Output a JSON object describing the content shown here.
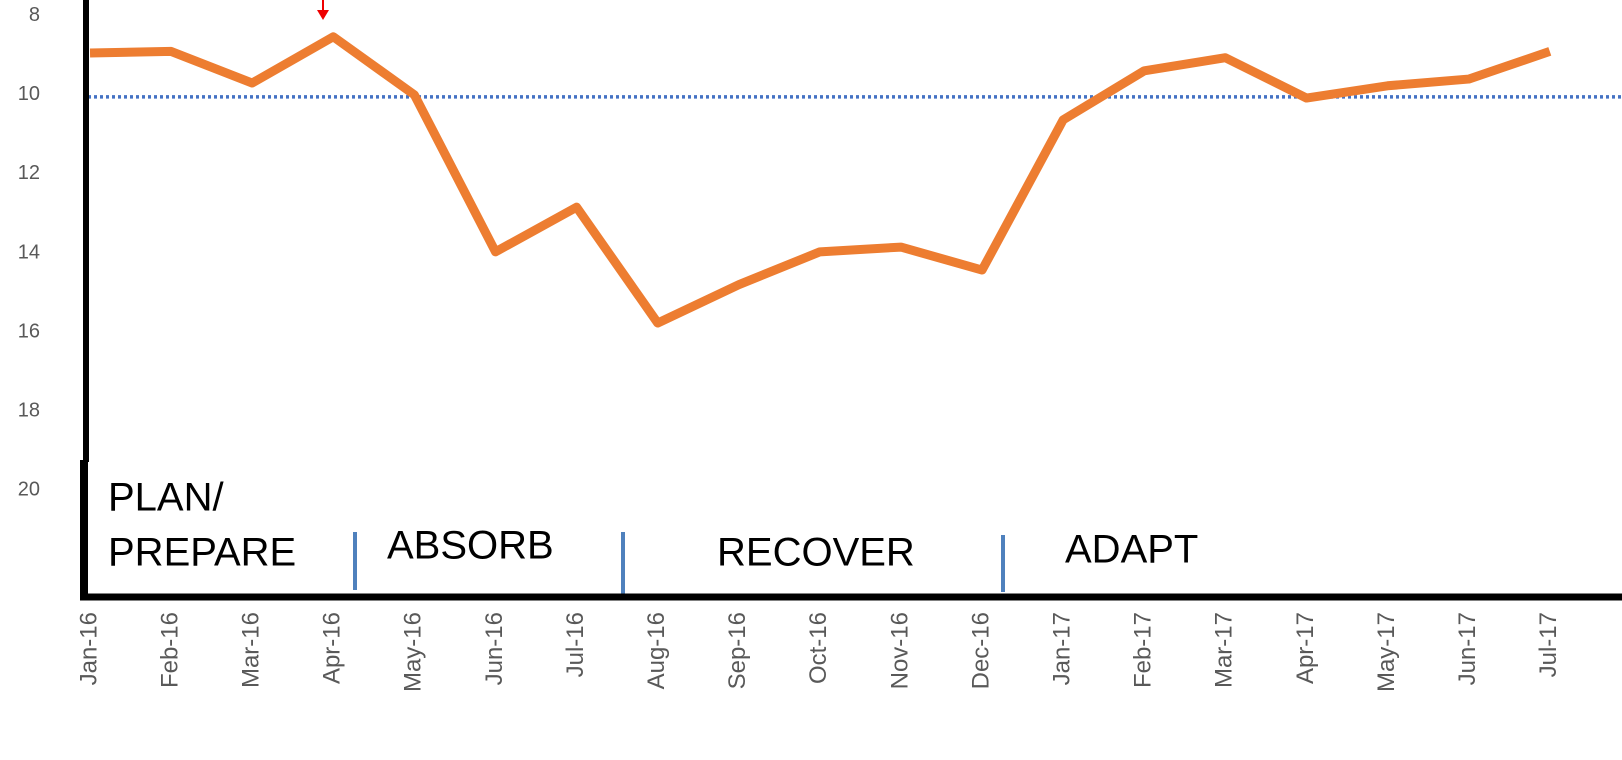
{
  "chart_data": {
    "type": "line",
    "categories": [
      "Jan-16",
      "Feb-16",
      "Mar-16",
      "Apr-16",
      "May-16",
      "Jun-16",
      "Jul-16",
      "Aug-16",
      "Sep-16",
      "Oct-16",
      "Nov-16",
      "Dec-16",
      "Jan-17",
      "Feb-17",
      "Mar-17",
      "Apr-17",
      "May-17",
      "Jun-17",
      "Jul-17"
    ],
    "series": [
      {
        "color": "#ed7d31",
        "values": [
          8.94,
          8.9,
          9.7,
          8.53,
          10.0,
          13.97,
          12.84,
          15.77,
          14.8,
          13.97,
          13.85,
          14.43,
          10.63,
          9.39,
          9.06,
          10.08,
          9.77,
          9.6,
          8.9
        ]
      }
    ],
    "reference_line": {
      "value": 10.05,
      "color": "#4472c4"
    },
    "ylim": [
      7.6,
      22.7
    ],
    "y_inverted": true,
    "yticks": [
      8,
      10,
      12,
      14,
      16,
      18,
      20
    ],
    "annotations": [
      [
        "PLAN/",
        "PREPARE"
      ],
      [
        "ABSORB"
      ],
      [
        "RECOVER"
      ],
      [
        "ADAPT"
      ]
    ]
  }
}
